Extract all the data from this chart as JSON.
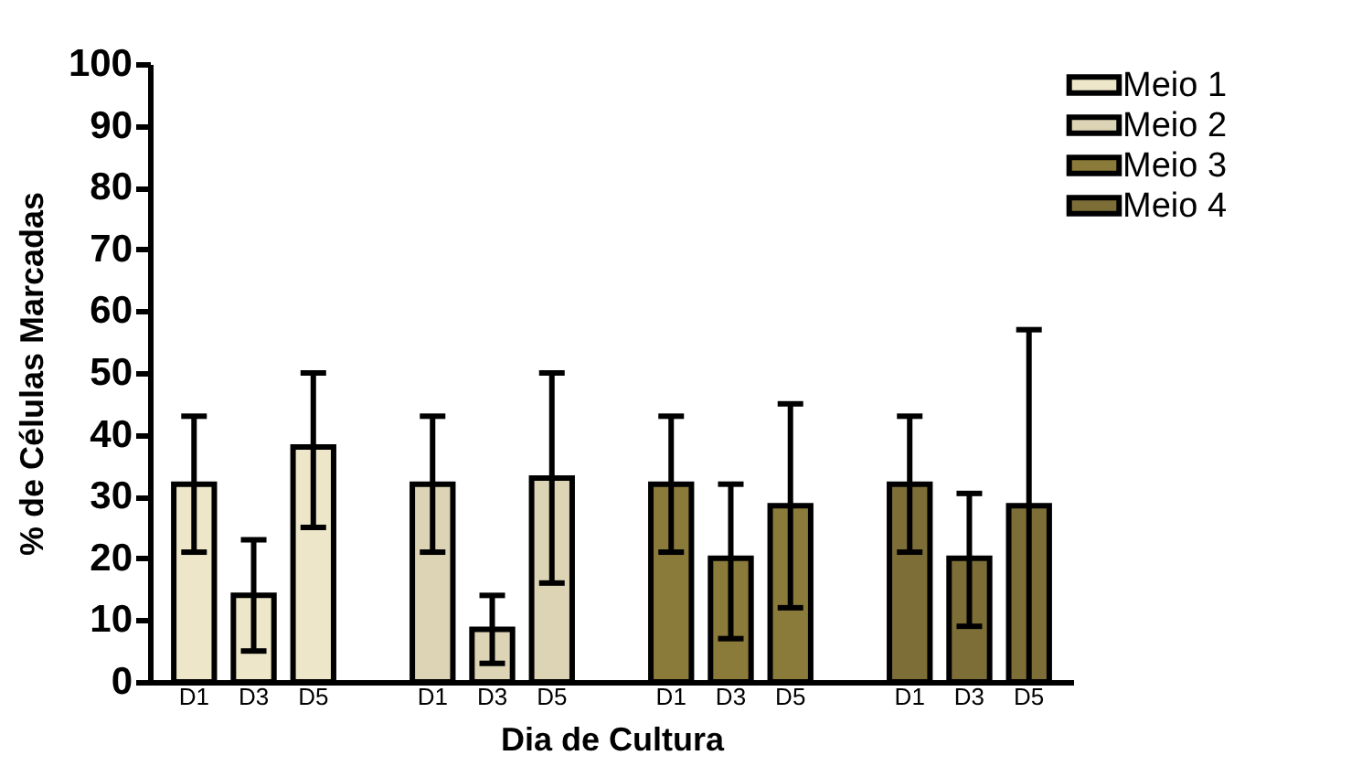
{
  "chart_data": {
    "type": "bar",
    "xlabel": "Dia de Cultura",
    "ylabel": "% de Células Marcadas",
    "categories": [
      "D1",
      "D3",
      "D5",
      null,
      "D1",
      "D3",
      "D5",
      null,
      "D1",
      "D3",
      "D5",
      null,
      "D1",
      "D3",
      "D5"
    ],
    "series": [
      {
        "name": "Meio 1",
        "color": "#ede6c9",
        "values": [
          32,
          14,
          38,
          null,
          null,
          null,
          null,
          null,
          null,
          null,
          null,
          null,
          null,
          null,
          null
        ],
        "errors": [
          [
            21,
            43
          ],
          [
            5,
            23
          ],
          [
            25,
            50
          ],
          null,
          null,
          null,
          null,
          null,
          null,
          null,
          null,
          null,
          null,
          null,
          null
        ]
      },
      {
        "name": "Meio 2",
        "color": "#dcd4b4",
        "values": [
          null,
          null,
          null,
          null,
          32,
          8.5,
          33,
          null,
          null,
          null,
          null,
          null,
          null,
          null,
          null
        ],
        "errors": [
          null,
          null,
          null,
          null,
          [
            21,
            43
          ],
          [
            3,
            14
          ],
          [
            16,
            50
          ],
          null,
          null,
          null,
          null,
          null,
          null,
          null,
          null
        ]
      },
      {
        "name": "Meio 3",
        "color": "#8b7b3a",
        "values": [
          null,
          null,
          null,
          null,
          null,
          null,
          null,
          null,
          32,
          20,
          28.5,
          null,
          null,
          null,
          null
        ],
        "errors": [
          null,
          null,
          null,
          null,
          null,
          null,
          null,
          null,
          [
            21,
            43
          ],
          [
            7,
            32
          ],
          [
            12,
            45
          ],
          null,
          null,
          null,
          null
        ]
      },
      {
        "name": "Meio 4",
        "color": "#7d6e38",
        "values": [
          null,
          null,
          null,
          null,
          null,
          null,
          null,
          null,
          null,
          null,
          null,
          null,
          32,
          20,
          28.5
        ],
        "errors": [
          null,
          null,
          null,
          null,
          null,
          null,
          null,
          null,
          null,
          null,
          null,
          null,
          [
            21,
            43
          ],
          [
            9,
            30.5
          ],
          [
            0,
            57
          ]
        ]
      }
    ],
    "ylim": [
      0,
      100
    ],
    "yticks": [
      0,
      10,
      20,
      30,
      40,
      50,
      60,
      70,
      80,
      90,
      100
    ],
    "legend": "top right"
  }
}
